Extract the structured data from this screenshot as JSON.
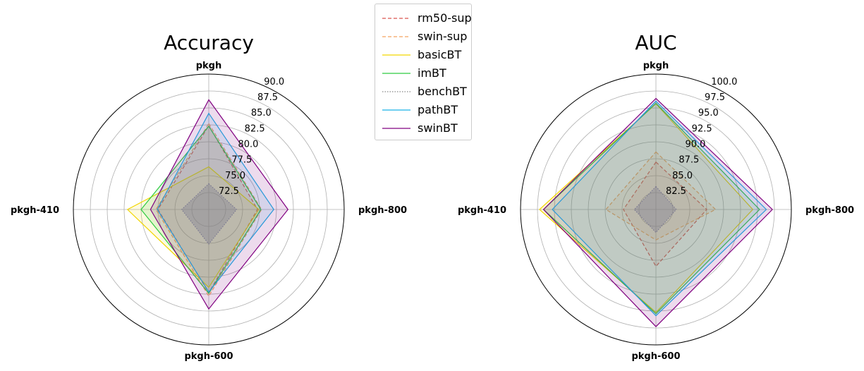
{
  "chart_data": [
    {
      "type": "radar",
      "title": "Accuracy",
      "categories": [
        "pkgh",
        "pkgh-800",
        "pkgh-600",
        "pkgh-410"
      ],
      "rlim": [
        70,
        90
      ],
      "tick_labels": [
        "72.5",
        "75.0",
        "77.5",
        "80.0",
        "82.5",
        "85.0",
        "87.5",
        "90.0"
      ],
      "series": [
        {
          "name": "rm50-sup",
          "values": [
            82.4,
            77.2,
            82.3,
            77.5
          ]
        },
        {
          "name": "swin-sup",
          "values": [
            82.7,
            77.8,
            82.8,
            77.8
          ]
        },
        {
          "name": "basicBT",
          "values": [
            76.3,
            77.4,
            81.5,
            82.0
          ]
        },
        {
          "name": "imBT",
          "values": [
            82.3,
            77.7,
            82.4,
            80.0
          ]
        },
        {
          "name": "benchBT",
          "values": [
            73.8,
            74.1,
            75.1,
            74.0
          ]
        },
        {
          "name": "pathBT",
          "values": [
            84.2,
            79.6,
            82.2,
            77.6
          ]
        },
        {
          "name": "swinBT",
          "values": [
            86.2,
            81.7,
            84.7,
            78.6
          ]
        }
      ]
    },
    {
      "type": "radar",
      "title": "AUC",
      "categories": [
        "pkgh",
        "pkgh-800",
        "pkgh-600",
        "pkgh-410"
      ],
      "rlim": [
        80,
        100
      ],
      "tick_labels": [
        "82.5",
        "85.0",
        "87.5",
        "90.0",
        "92.5",
        "95.0",
        "97.5",
        "100.0"
      ],
      "series": [
        {
          "name": "rm50-sup",
          "values": [
            87.0,
            87.5,
            88.4,
            84.8
          ]
        },
        {
          "name": "swin-sup",
          "values": [
            88.5,
            88.8,
            84.5,
            87.4
          ]
        },
        {
          "name": "basicBT",
          "values": [
            95.6,
            94.3,
            95.2,
            97.2
          ]
        },
        {
          "name": "imBT",
          "values": [
            95.7,
            95.3,
            95.4,
            96.6
          ]
        },
        {
          "name": "benchBT",
          "values": [
            83.4,
            83.0,
            83.4,
            83.2
          ]
        },
        {
          "name": "pathBT",
          "values": [
            96.0,
            96.3,
            95.7,
            95.3
          ]
        },
        {
          "name": "swinBT",
          "values": [
            96.4,
            97.2,
            97.3,
            96.6
          ]
        }
      ]
    }
  ],
  "legend": {
    "entries": [
      {
        "name": "rm50-sup",
        "color": "#d9534f",
        "style": "dashed"
      },
      {
        "name": "swin-sup",
        "color": "#f4a460",
        "style": "dashed"
      },
      {
        "name": "basicBT",
        "color": "#f2d600",
        "style": "solid"
      },
      {
        "name": "imBT",
        "color": "#2ecc40",
        "style": "solid"
      },
      {
        "name": "benchBT",
        "color": "#888888",
        "style": "dotted"
      },
      {
        "name": "pathBT",
        "color": "#1ab2e8",
        "style": "solid"
      },
      {
        "name": "swinBT",
        "color": "#800080",
        "style": "solid"
      }
    ]
  }
}
